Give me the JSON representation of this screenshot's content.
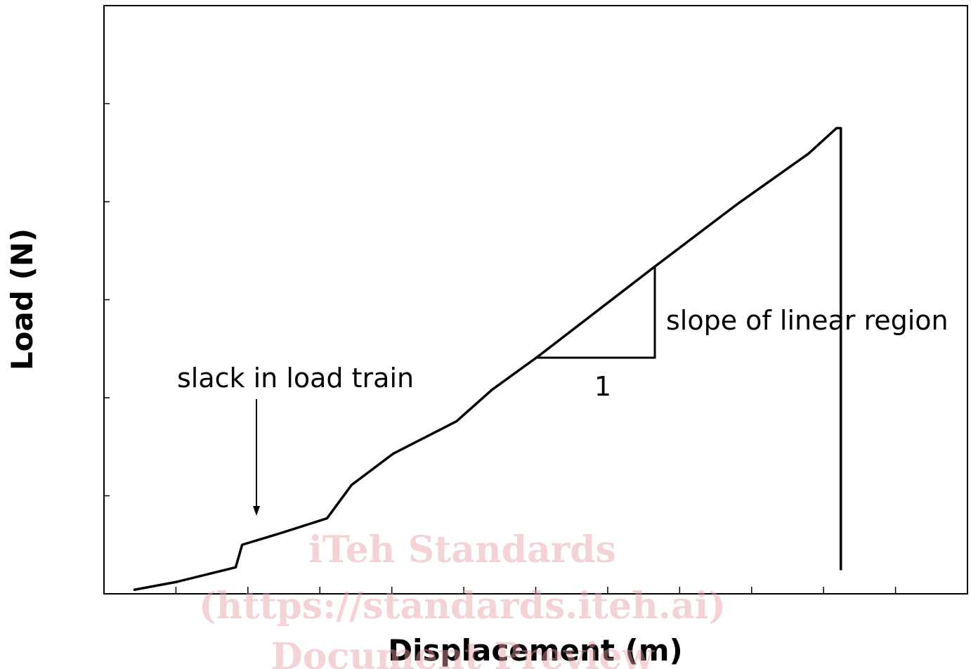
{
  "chart_data": {
    "type": "line",
    "x_label": "Displacement (m)",
    "y_label": "Load (N)",
    "annotations": [
      "slack in load train",
      "slope of linear region",
      "1"
    ],
    "watermark": [
      "iTeh Standards",
      "(https://standards.iteh.ai)",
      "Document Preview"
    ],
    "x": [
      0.41,
      1.0,
      1.83,
      1.92,
      2.46,
      3.1,
      3.44,
      4.02,
      4.9,
      5.39,
      6.03,
      7.64,
      8.81,
      9.79,
      10.18,
      10.24,
      10.24
    ],
    "values": [
      0.04,
      0.12,
      0.27,
      0.5,
      0.62,
      0.77,
      1.11,
      1.43,
      1.76,
      2.08,
      2.42,
      3.33,
      3.98,
      4.49,
      4.75,
      4.75,
      0.24
    ],
    "color": "#000000",
    "xlim": [
      0,
      12
    ],
    "xticks": [
      1,
      2,
      3,
      4,
      5,
      6,
      7,
      8,
      9,
      10,
      11
    ],
    "ylim": [
      0,
      6
    ],
    "yticks": [
      1,
      2,
      3,
      4,
      5
    ],
    "grid": false
  }
}
